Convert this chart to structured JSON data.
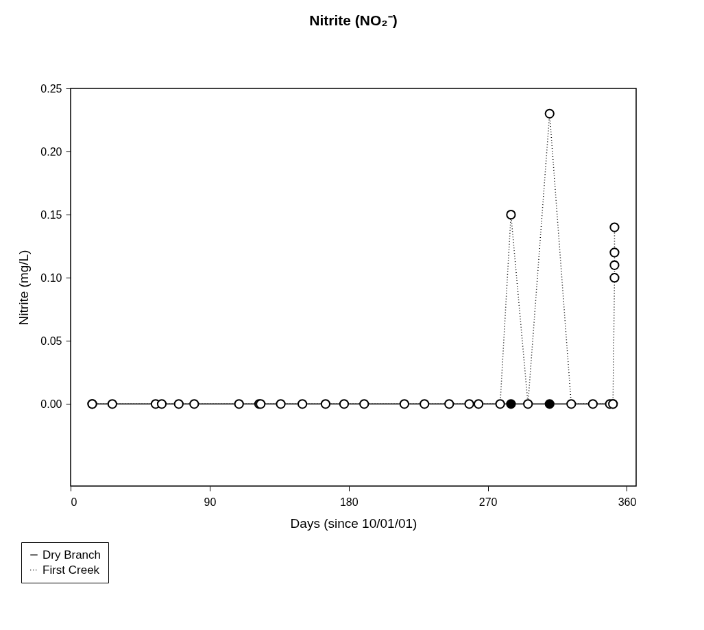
{
  "chart_data": {
    "type": "line",
    "title": "Nitrite (NO₂⁻)",
    "xlabel": "Days (since 10/01/01)",
    "ylabel": "Nitrite (mg/L)",
    "xlim": [
      0,
      366
    ],
    "xticks": [
      0,
      90,
      180,
      270,
      360
    ],
    "ylim": [
      -0.065,
      0.25
    ],
    "yticks": [
      {
        "value": 0,
        "label": "0.00"
      },
      0.05,
      {
        "value": 0.1,
        "label": "0.10"
      },
      0.15,
      {
        "value": 0.2,
        "label": "0.20"
      },
      0.25
    ],
    "grid": false,
    "legend": "bottom left",
    "marker": "circle",
    "series": [
      {
        "name": "Dry Branch",
        "color": "#000000",
        "line_style": "solid",
        "x": [
          14,
          285,
          310,
          351
        ],
        "values": [
          0,
          0,
          0,
          0
        ]
      },
      {
        "name": "First Creek",
        "color": "#000000",
        "line_style": "dotted",
        "x": [
          14,
          27,
          55,
          59,
          70,
          80,
          109,
          122,
          123,
          136,
          150,
          165,
          177,
          190,
          216,
          229,
          245,
          258,
          264,
          278,
          285,
          296,
          310,
          324,
          338,
          349,
          351,
          352,
          352,
          352,
          352
        ],
        "values": [
          0,
          0,
          0,
          0,
          0,
          0,
          0,
          0,
          0,
          0,
          0,
          0,
          0,
          0,
          0,
          0,
          0,
          0,
          0,
          0,
          0.15,
          0,
          0.23,
          0,
          0,
          0,
          0,
          0.1,
          0.11,
          0.12,
          0.14
        ]
      }
    ]
  }
}
